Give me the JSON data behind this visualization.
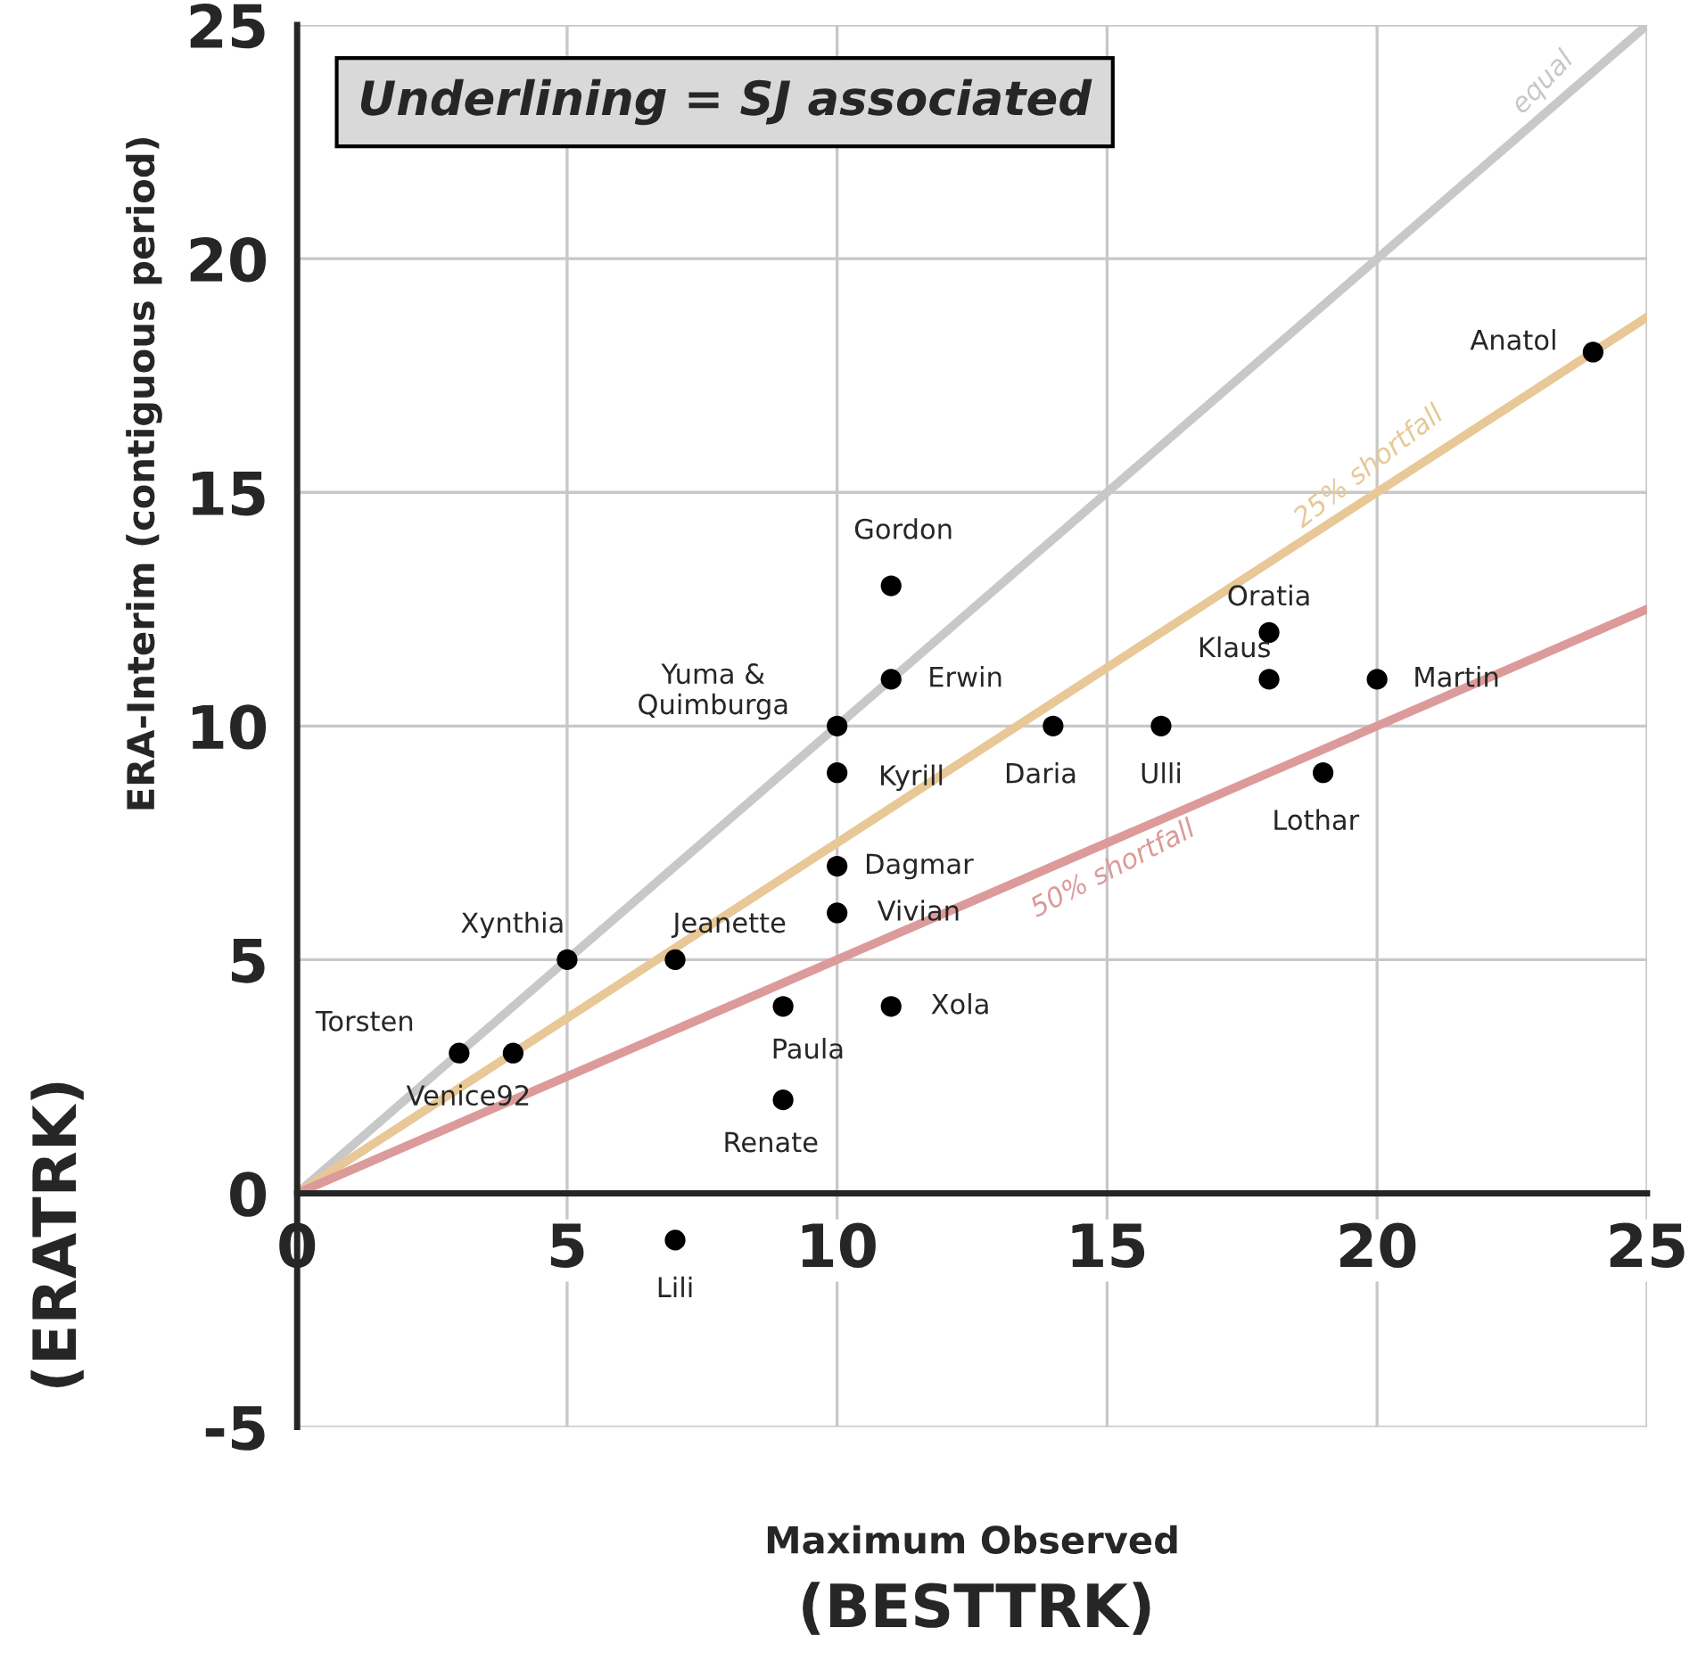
{
  "chart_data": {
    "type": "scatter",
    "xlabel": "Maximum Observed",
    "ylabel": "ERA-Interim (contiguous period)",
    "xlim": [
      0,
      25
    ],
    "xticks": [
      0,
      5,
      10,
      15,
      20,
      25
    ],
    "ylim": [
      -5,
      25
    ],
    "yticks": [
      -5,
      0,
      5,
      10,
      15,
      20,
      25
    ],
    "grid": true,
    "marker": "circle",
    "series": [
      {
        "name": "equal",
        "type": "line",
        "marker": "none",
        "color": "#c8c8c8",
        "x": [
          0,
          25
        ],
        "values": [
          0,
          25
        ]
      },
      {
        "name": "25% shortfall",
        "type": "line",
        "marker": "none",
        "color": "#e8c896",
        "x": [
          0,
          25
        ],
        "values": [
          0,
          18.75
        ]
      },
      {
        "name": "50% shortfall",
        "type": "line",
        "marker": "none",
        "color": "#dc9a9a",
        "x": [
          0,
          25
        ],
        "values": [
          0,
          12.5
        ]
      },
      {
        "color": "#000000",
        "x": [
          3,
          4,
          5,
          7,
          9,
          9,
          7,
          10,
          10,
          10,
          10,
          11,
          11,
          11,
          14,
          16,
          18,
          18,
          20,
          19,
          24
        ],
        "values": [
          3,
          3,
          5,
          5,
          4,
          2,
          -1,
          10,
          9,
          7,
          6,
          13,
          11,
          4,
          10,
          10,
          12,
          11,
          11,
          9,
          18
        ]
      }
    ],
    "annotations": [
      "Underlining = SJ associated",
      "(ERATRK)",
      "(BESTTRK)",
      {
        "text": "Torsten",
        "x": 3,
        "y": 3
      },
      {
        "text": "Venice92",
        "x": 4,
        "y": 3
      },
      {
        "text": "Xynthia",
        "x": 5,
        "y": 5
      },
      {
        "text": "Jeanette",
        "x": 7,
        "y": 5
      },
      {
        "text": "Paula",
        "x": 9,
        "y": 4
      },
      {
        "text": "Renate",
        "x": 9,
        "y": 2
      },
      {
        "text": "Lili",
        "x": 7,
        "y": -1
      },
      {
        "text": "Yuma &\nQuimburga",
        "x": 10,
        "y": 10
      },
      {
        "text": "Kyrill",
        "x": 10,
        "y": 9
      },
      {
        "text": "Dagmar",
        "x": 10,
        "y": 7
      },
      {
        "text": "Vivian",
        "x": 10,
        "y": 6
      },
      {
        "text": "Gordon",
        "x": 11,
        "y": 13
      },
      {
        "text": "Erwin",
        "x": 11,
        "y": 11
      },
      {
        "text": "Xola",
        "x": 11,
        "y": 4
      },
      {
        "text": "Daria",
        "x": 14,
        "y": 10
      },
      {
        "text": "Ulli",
        "x": 16,
        "y": 10
      },
      {
        "text": "Oratia",
        "x": 18,
        "y": 12
      },
      {
        "text": "Klaus",
        "x": 18,
        "y": 11
      },
      {
        "text": "Martin",
        "x": 20,
        "y": 11
      },
      {
        "text": "Lothar",
        "x": 19,
        "y": 9
      },
      {
        "text": "Anatol",
        "x": 24,
        "y": 18
      }
    ]
  }
}
